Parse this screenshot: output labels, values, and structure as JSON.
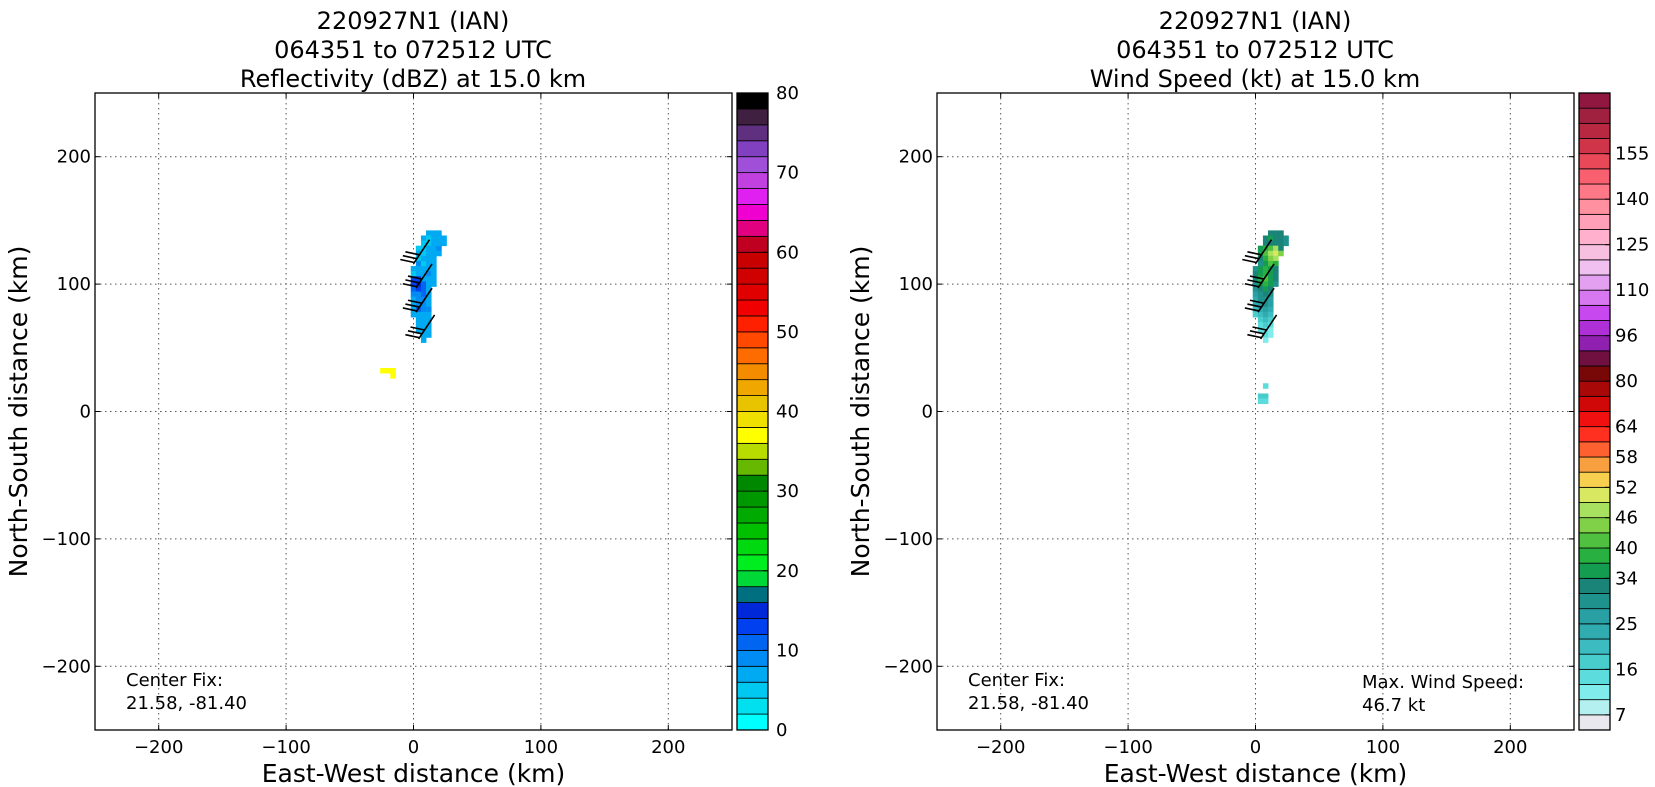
{
  "chart_data": [
    {
      "type": "heatmap",
      "title_lines": [
        "220927N1 (IAN)",
        "064351 to 072512 UTC",
        "Reflectivity (dBZ) at 15.0 km"
      ],
      "xlabel": "East-West distance (km)",
      "ylabel": "North-South distance (km)",
      "xlim": [
        -250,
        250
      ],
      "ylim": [
        -250,
        250
      ],
      "xticks": [
        -200,
        -100,
        0,
        100,
        200
      ],
      "yticks": [
        -200,
        -100,
        0,
        100,
        200
      ],
      "tick_labels_x": [
        "−200",
        "−100",
        "0",
        "100",
        "200"
      ],
      "tick_labels_y": [
        "−200",
        "−100",
        "0",
        "100",
        "200"
      ],
      "grid": true,
      "annotation": [
        "Center Fix:",
        "21.58, -81.40"
      ],
      "colorbar": {
        "min": 0,
        "max": 80,
        "tick_values": [
          0,
          10,
          20,
          30,
          40,
          50,
          60,
          70,
          80
        ],
        "tick_labels": [
          "0",
          "10",
          "20",
          "30",
          "40",
          "50",
          "60",
          "70",
          "80"
        ],
        "colors": [
          "#00ffff",
          "#00e0ef",
          "#00c8f0",
          "#00aaf2",
          "#008cf3",
          "#0066f2",
          "#0040ef",
          "#0028d8",
          "#007080",
          "#00d838",
          "#00ee20",
          "#00d810",
          "#00c000",
          "#00aa00",
          "#009800",
          "#008800",
          "#66b800",
          "#b8dc00",
          "#ffff00",
          "#f0e000",
          "#e8c400",
          "#f0a800",
          "#f48c00",
          "#fc6c00",
          "#ff4800",
          "#ff2000",
          "#f00000",
          "#e00000",
          "#d00000",
          "#c80000",
          "#c00020",
          "#e00080",
          "#f000d0",
          "#e020f0",
          "#c040e0",
          "#a050d8",
          "#8040c0",
          "#603080",
          "#402040",
          "#000000"
        ]
      },
      "cells": [
        [
          12,
          140,
          3
        ],
        [
          16,
          140,
          3
        ],
        [
          20,
          140,
          3
        ],
        [
          8,
          136,
          3
        ],
        [
          12,
          136,
          2
        ],
        [
          16,
          136,
          3
        ],
        [
          20,
          136,
          3
        ],
        [
          24,
          136,
          3
        ],
        [
          8,
          132,
          2
        ],
        [
          12,
          132,
          2
        ],
        [
          16,
          132,
          3
        ],
        [
          20,
          132,
          3
        ],
        [
          24,
          132,
          3
        ],
        [
          4,
          128,
          2
        ],
        [
          8,
          128,
          2
        ],
        [
          12,
          128,
          3
        ],
        [
          16,
          128,
          3
        ],
        [
          20,
          128,
          4
        ],
        [
          4,
          124,
          3
        ],
        [
          8,
          124,
          2
        ],
        [
          12,
          124,
          3
        ],
        [
          16,
          124,
          3
        ],
        [
          20,
          124,
          3
        ],
        [
          4,
          120,
          2
        ],
        [
          8,
          120,
          3
        ],
        [
          12,
          120,
          3
        ],
        [
          16,
          120,
          3
        ],
        [
          4,
          116,
          4
        ],
        [
          8,
          116,
          2
        ],
        [
          12,
          116,
          3
        ],
        [
          16,
          116,
          3
        ],
        [
          0,
          112,
          3
        ],
        [
          4,
          112,
          3
        ],
        [
          8,
          112,
          3
        ],
        [
          12,
          112,
          3
        ],
        [
          16,
          112,
          3
        ],
        [
          0,
          108,
          2
        ],
        [
          4,
          108,
          3
        ],
        [
          8,
          108,
          3
        ],
        [
          12,
          108,
          4
        ],
        [
          16,
          108,
          3
        ],
        [
          0,
          104,
          6
        ],
        [
          4,
          104,
          6
        ],
        [
          8,
          104,
          3
        ],
        [
          12,
          104,
          3
        ],
        [
          16,
          104,
          3
        ],
        [
          0,
          100,
          6
        ],
        [
          4,
          100,
          7
        ],
        [
          8,
          100,
          5
        ],
        [
          12,
          100,
          3
        ],
        [
          16,
          100,
          3
        ],
        [
          0,
          96,
          5
        ],
        [
          4,
          96,
          6
        ],
        [
          8,
          96,
          5
        ],
        [
          12,
          96,
          3
        ],
        [
          0,
          92,
          4
        ],
        [
          4,
          92,
          4
        ],
        [
          8,
          92,
          5
        ],
        [
          12,
          92,
          3
        ],
        [
          0,
          88,
          3
        ],
        [
          4,
          88,
          4
        ],
        [
          8,
          88,
          4
        ],
        [
          12,
          88,
          3
        ],
        [
          0,
          84,
          3
        ],
        [
          4,
          84,
          4
        ],
        [
          8,
          84,
          4
        ],
        [
          12,
          84,
          3
        ],
        [
          0,
          80,
          3
        ],
        [
          4,
          80,
          5
        ],
        [
          8,
          80,
          4
        ],
        [
          12,
          80,
          4
        ],
        [
          0,
          76,
          3
        ],
        [
          4,
          76,
          3
        ],
        [
          8,
          76,
          3
        ],
        [
          12,
          76,
          3
        ],
        [
          4,
          72,
          3
        ],
        [
          8,
          72,
          3
        ],
        [
          12,
          72,
          3
        ],
        [
          4,
          68,
          3
        ],
        [
          8,
          68,
          3
        ],
        [
          12,
          68,
          3
        ],
        [
          4,
          64,
          3
        ],
        [
          8,
          64,
          3
        ],
        [
          12,
          64,
          3
        ],
        [
          8,
          60,
          3
        ],
        [
          12,
          60,
          3
        ],
        [
          8,
          56,
          3
        ],
        [
          -24,
          32,
          18
        ],
        [
          -20,
          32,
          18
        ],
        [
          -16,
          32,
          18
        ],
        [
          -16,
          28,
          18
        ]
      ],
      "barbs": [
        [
          0,
          116
        ],
        [
          2,
          97
        ],
        [
          2,
          78
        ],
        [
          4,
          57
        ]
      ]
    },
    {
      "type": "heatmap",
      "title_lines": [
        "220927N1 (IAN)",
        "064351 to 072512 UTC",
        "Wind Speed (kt) at 15.0 km"
      ],
      "xlabel": "East-West distance (km)",
      "ylabel": "North-South distance (km)",
      "xlim": [
        -250,
        250
      ],
      "ylim": [
        -250,
        250
      ],
      "xticks": [
        -200,
        -100,
        0,
        100,
        200
      ],
      "yticks": [
        -200,
        -100,
        0,
        100,
        200
      ],
      "tick_labels_x": [
        "−200",
        "−100",
        "0",
        "100",
        "200"
      ],
      "tick_labels_y": [
        "−200",
        "−100",
        "0",
        "100",
        "200"
      ],
      "grid": true,
      "annotation": [
        "Center Fix:",
        "21.58, -81.40"
      ],
      "annotation_right": [
        "Max. Wind Speed:",
        "46.7 kt"
      ],
      "max_wind_speed_kt": 46.7,
      "colorbar": {
        "tick_labels": [
          "7",
          "16",
          "25",
          "34",
          "40",
          "46",
          "52",
          "58",
          "64",
          "80",
          "96",
          "110",
          "125",
          "140",
          "155"
        ],
        "tick_boundaries": [
          1,
          4,
          7,
          10,
          12,
          14,
          16,
          18,
          20,
          23,
          26,
          29,
          32,
          35,
          38
        ],
        "colors": [
          "#e8e8ee",
          "#b4f0f0",
          "#80ecec",
          "#5cdcdc",
          "#48cccc",
          "#3cbcc0",
          "#30acb0",
          "#28a0a4",
          "#20928e",
          "#1a8478",
          "#149c50",
          "#28b040",
          "#50c040",
          "#80d048",
          "#a8e060",
          "#d8e860",
          "#f8d050",
          "#f8a040",
          "#ff6030",
          "#ff3020",
          "#f01010",
          "#d00808",
          "#a80808",
          "#780808",
          "#701040",
          "#9020b0",
          "#b030d8",
          "#c848f0",
          "#d878f0",
          "#e4a0f0",
          "#f0c0f0",
          "#f8c0e0",
          "#ffb0cc",
          "#ffa0b8",
          "#ff90a0",
          "#ff7888",
          "#f86070",
          "#e84858",
          "#d03448",
          "#b82840",
          "#a02040",
          "#901840"
        ]
      },
      "cells": [
        [
          12,
          140,
          9
        ],
        [
          16,
          140,
          9
        ],
        [
          20,
          140,
          9
        ],
        [
          8,
          136,
          9
        ],
        [
          12,
          136,
          10
        ],
        [
          16,
          136,
          9
        ],
        [
          20,
          136,
          9
        ],
        [
          24,
          136,
          8
        ],
        [
          8,
          132,
          9
        ],
        [
          12,
          132,
          9
        ],
        [
          16,
          132,
          9
        ],
        [
          20,
          132,
          9
        ],
        [
          24,
          132,
          8
        ],
        [
          4,
          128,
          10
        ],
        [
          8,
          128,
          11
        ],
        [
          12,
          128,
          12
        ],
        [
          16,
          128,
          14
        ],
        [
          20,
          128,
          9
        ],
        [
          4,
          124,
          10
        ],
        [
          8,
          124,
          12
        ],
        [
          12,
          124,
          14
        ],
        [
          16,
          124,
          15
        ],
        [
          20,
          124,
          13
        ],
        [
          4,
          120,
          9
        ],
        [
          8,
          120,
          11
        ],
        [
          12,
          120,
          13
        ],
        [
          16,
          120,
          14
        ],
        [
          4,
          116,
          8
        ],
        [
          8,
          116,
          10
        ],
        [
          12,
          116,
          12
        ],
        [
          16,
          116,
          11
        ],
        [
          0,
          112,
          8
        ],
        [
          4,
          112,
          10
        ],
        [
          8,
          112,
          11
        ],
        [
          12,
          112,
          10
        ],
        [
          16,
          112,
          9
        ],
        [
          0,
          108,
          9
        ],
        [
          4,
          108,
          10
        ],
        [
          8,
          108,
          11
        ],
        [
          12,
          108,
          10
        ],
        [
          16,
          108,
          9
        ],
        [
          0,
          104,
          9
        ],
        [
          4,
          104,
          11
        ],
        [
          8,
          104,
          12
        ],
        [
          12,
          104,
          10
        ],
        [
          16,
          104,
          9
        ],
        [
          0,
          100,
          8
        ],
        [
          4,
          100,
          10
        ],
        [
          8,
          100,
          11
        ],
        [
          12,
          100,
          10
        ],
        [
          16,
          100,
          8
        ],
        [
          0,
          96,
          8
        ],
        [
          4,
          96,
          9
        ],
        [
          8,
          96,
          10
        ],
        [
          12,
          96,
          9
        ],
        [
          0,
          92,
          7
        ],
        [
          4,
          92,
          8
        ],
        [
          8,
          92,
          9
        ],
        [
          12,
          92,
          8
        ],
        [
          0,
          88,
          6
        ],
        [
          4,
          88,
          8
        ],
        [
          8,
          88,
          8
        ],
        [
          12,
          88,
          7
        ],
        [
          0,
          84,
          6
        ],
        [
          4,
          84,
          7
        ],
        [
          8,
          84,
          8
        ],
        [
          12,
          84,
          7
        ],
        [
          0,
          80,
          5
        ],
        [
          4,
          80,
          6
        ],
        [
          8,
          80,
          7
        ],
        [
          12,
          80,
          6
        ],
        [
          0,
          76,
          4
        ],
        [
          4,
          76,
          5
        ],
        [
          8,
          76,
          6
        ],
        [
          12,
          76,
          5
        ],
        [
          4,
          72,
          4
        ],
        [
          8,
          72,
          5
        ],
        [
          12,
          72,
          4
        ],
        [
          4,
          68,
          3
        ],
        [
          8,
          68,
          4
        ],
        [
          12,
          68,
          3
        ],
        [
          4,
          64,
          3
        ],
        [
          8,
          64,
          3
        ],
        [
          12,
          64,
          2
        ],
        [
          8,
          60,
          3
        ],
        [
          12,
          60,
          2
        ],
        [
          8,
          56,
          2
        ],
        [
          8,
          20,
          3
        ],
        [
          4,
          12,
          4
        ],
        [
          8,
          12,
          4
        ],
        [
          4,
          8,
          3
        ],
        [
          8,
          8,
          3
        ]
      ],
      "barbs": [
        [
          0,
          116
        ],
        [
          2,
          97
        ],
        [
          2,
          78
        ],
        [
          4,
          57
        ]
      ]
    }
  ]
}
